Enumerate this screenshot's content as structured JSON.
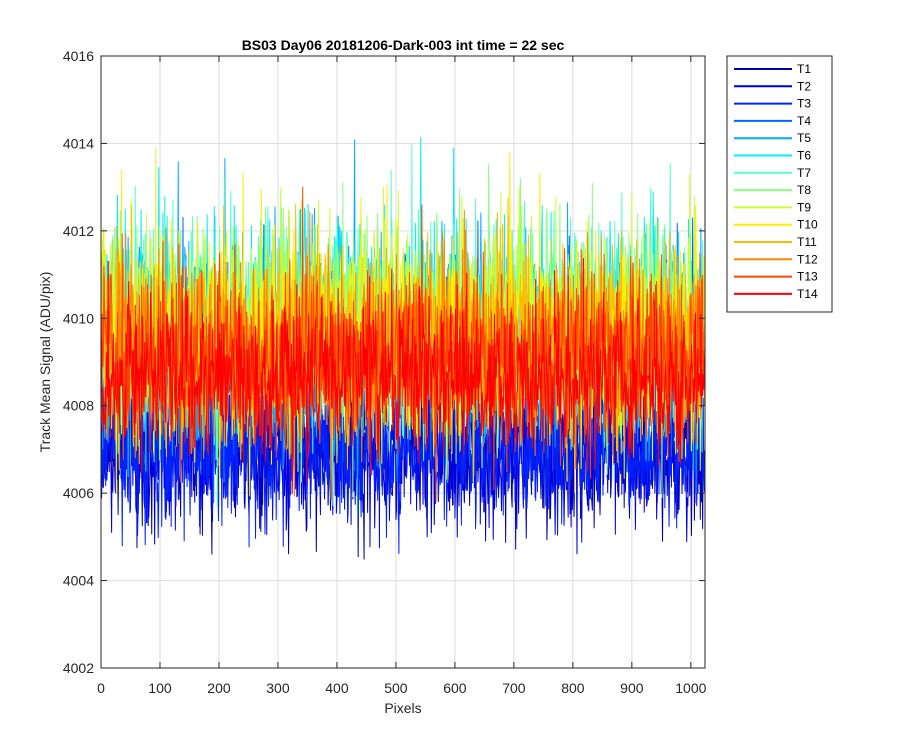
{
  "chart_data": {
    "type": "line",
    "title": "BS03 Day06 20181206-Dark-003 int time = 22 sec",
    "xlabel": "Pixels",
    "ylabel": "Track Mean Signal (ADU/pix)",
    "xlim": [
      0,
      1024
    ],
    "ylim": [
      4002,
      4016
    ],
    "x_ticks": [
      0,
      100,
      200,
      300,
      400,
      500,
      600,
      700,
      800,
      900,
      1000
    ],
    "y_ticks": [
      4002,
      4004,
      4006,
      4008,
      4010,
      4012,
      4014,
      4016
    ],
    "grid": true,
    "legend_position": "outside-top-right",
    "n_points": 1024,
    "series": [
      {
        "name": "T1",
        "color": "#0000AA",
        "mean": 4006.9,
        "spread": 0.85,
        "min": 4003.2,
        "max": 4008.5
      },
      {
        "name": "T2",
        "color": "#0000DD",
        "mean": 4007.0,
        "spread": 0.85,
        "min": 4003.6,
        "max": 4008.6
      },
      {
        "name": "T3",
        "color": "#0022FF",
        "mean": 4007.1,
        "spread": 0.85,
        "min": 4003.9,
        "max": 4008.7
      },
      {
        "name": "T4",
        "color": "#0066FF",
        "mean": 4009.2,
        "spread": 1.1,
        "min": 4005.0,
        "max": 4013.0
      },
      {
        "name": "T5",
        "color": "#00AAFF",
        "mean": 4009.5,
        "spread": 1.2,
        "min": 4005.3,
        "max": 4014.2
      },
      {
        "name": "T6",
        "color": "#00EEFF",
        "mean": 4009.8,
        "spread": 1.25,
        "min": 4005.5,
        "max": 4014.3
      },
      {
        "name": "T7",
        "color": "#55FFCC",
        "mean": 4009.8,
        "spread": 1.2,
        "min": 4005.6,
        "max": 4014.0
      },
      {
        "name": "T8",
        "color": "#88FF88",
        "mean": 4009.8,
        "spread": 1.2,
        "min": 4004.5,
        "max": 4015.6
      },
      {
        "name": "T9",
        "color": "#CCFF33",
        "mean": 4009.7,
        "spread": 1.15,
        "min": 4005.8,
        "max": 4014.0
      },
      {
        "name": "T10",
        "color": "#FFEE00",
        "mean": 4009.6,
        "spread": 1.15,
        "min": 4005.8,
        "max": 4014.3
      },
      {
        "name": "T11",
        "color": "#FFBB00",
        "mean": 4009.4,
        "spread": 1.1,
        "min": 4005.8,
        "max": 4014.3
      },
      {
        "name": "T12",
        "color": "#FF8800",
        "mean": 4009.3,
        "spread": 1.05,
        "min": 4005.8,
        "max": 4013.6
      },
      {
        "name": "T13",
        "color": "#FF4400",
        "mean": 4009.1,
        "spread": 1.0,
        "min": 4005.0,
        "max": 4014.0
      },
      {
        "name": "T14",
        "color": "#FF0000",
        "mean": 4008.7,
        "spread": 0.9,
        "min": 4005.8,
        "max": 4012.9
      }
    ]
  }
}
